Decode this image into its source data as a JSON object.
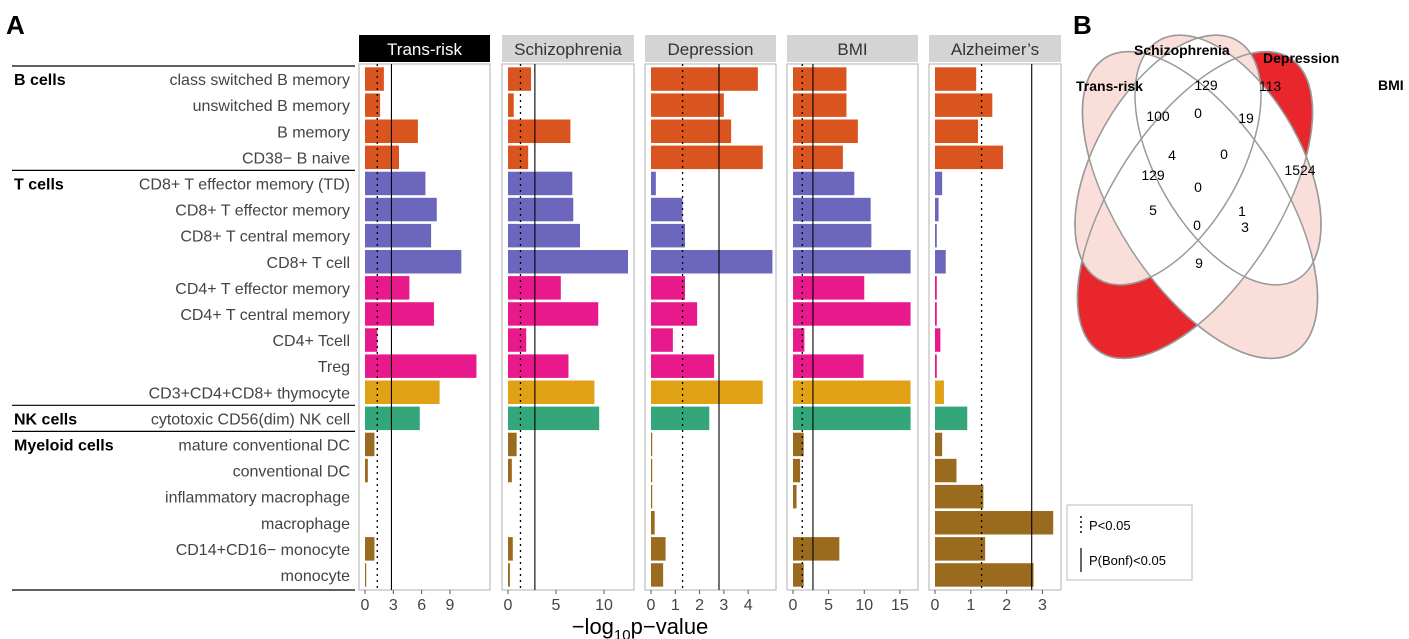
{
  "panel_labels": {
    "a": "A",
    "b": "B"
  },
  "colors": {
    "B cells": "#D9541E",
    "T cells CD8": "#6C67BD",
    "T cells CD4": "#E8198B",
    "thymocyte": "#E0A117",
    "NK cells": "#34A77A",
    "Myeloid cells": "#9A6B1E",
    "trans_risk_header": "#000000",
    "strip_header": "#D4D4D4",
    "venn_bmi": "#E8262C",
    "venn_light": "#F9DEDA"
  },
  "chart_data": [
    {
      "type": "bar",
      "orientation": "horizontal",
      "xlabel": "−log₁₀p−value",
      "xlabel_parts": {
        "pre": "−log",
        "sub": "10",
        "post": "p−value"
      },
      "groups": [
        {
          "name": "B cells",
          "rows": [
            0,
            3
          ]
        },
        {
          "name": "T cells",
          "rows": [
            4,
            12
          ]
        },
        {
          "name": "NK cells",
          "rows": [
            13,
            13
          ]
        },
        {
          "name": "Myeloid cells",
          "rows": [
            14,
            19
          ]
        }
      ],
      "categories": [
        "class switched B memory",
        "unswitched B memory",
        "B memory",
        "CD38− B naive",
        "CD8+ T effector memory (TD)",
        "CD8+ T effector memory",
        "CD8+ T central memory",
        "CD8+ T cell",
        "CD4+ T effector memory",
        "CD4+ T central memory",
        "CD4+ Tcell",
        "Treg",
        "CD3+CD4+CD8+ thymocyte",
        "cytotoxic CD56(dim) NK cell",
        "mature conventional DC",
        "conventional DC",
        "inflammatory macrophage",
        "macrophage",
        "CD14+CD16− monocyte",
        "monocyte"
      ],
      "category_color_keys": [
        "B cells",
        "B cells",
        "B cells",
        "B cells",
        "T cells CD8",
        "T cells CD8",
        "T cells CD8",
        "T cells CD8",
        "T cells CD4",
        "T cells CD4",
        "T cells CD4",
        "T cells CD4",
        "thymocyte",
        "NK cells",
        "Myeloid cells",
        "Myeloid cells",
        "Myeloid cells",
        "Myeloid cells",
        "Myeloid cells",
        "Myeloid cells"
      ],
      "series": [
        {
          "name": "Trans-risk",
          "xlim": [
            0,
            12.6
          ],
          "ticks": [
            0,
            3,
            6,
            9
          ],
          "p05": 1.3,
          "bonf": 2.8,
          "values": [
            2.0,
            1.6,
            5.6,
            3.6,
            6.4,
            7.6,
            7.0,
            10.2,
            4.7,
            7.3,
            1.3,
            11.8,
            7.9,
            5.8,
            1.0,
            0.3,
            0.0,
            0.0,
            1.0,
            0.1
          ]
        },
        {
          "name": "Schizophrenia",
          "xlim": [
            0,
            12.5
          ],
          "ticks": [
            0,
            5,
            10
          ],
          "p05": 1.3,
          "bonf": 2.8,
          "values": [
            2.4,
            0.6,
            6.5,
            2.1,
            6.7,
            6.8,
            7.5,
            12.5,
            5.5,
            9.4,
            1.9,
            6.3,
            9.0,
            9.5,
            0.9,
            0.4,
            0.0,
            0.0,
            0.5,
            0.2
          ]
        },
        {
          "name": "Depression",
          "xlim": [
            0,
            4.9
          ],
          "ticks": [
            0,
            1,
            2,
            3,
            4
          ],
          "p05": 1.3,
          "bonf": 2.8,
          "values": [
            4.4,
            3.0,
            3.3,
            4.6,
            0.2,
            1.3,
            1.4,
            5.0,
            1.4,
            1.9,
            0.9,
            2.6,
            4.6,
            2.4,
            0.05,
            0.05,
            0.05,
            0.15,
            0.6,
            0.5
          ]
        },
        {
          "name": "BMI",
          "xlim": [
            0,
            16.7
          ],
          "ticks": [
            0,
            5,
            10,
            15
          ],
          "p05": 1.3,
          "bonf": 2.8,
          "values": [
            7.5,
            7.5,
            9.1,
            7.0,
            8.6,
            10.9,
            11.0,
            16.5,
            10.0,
            16.5,
            1.6,
            9.9,
            16.5,
            16.5,
            1.5,
            1.0,
            0.5,
            0.0,
            6.5,
            1.5
          ]
        },
        {
          "name": "Alzheimer’s",
          "xlim": [
            0,
            3.35
          ],
          "ticks": [
            0,
            1,
            2,
            3
          ],
          "p05": 1.3,
          "bonf": 2.7,
          "values": [
            1.15,
            1.6,
            1.2,
            1.9,
            0.2,
            0.1,
            0.05,
            0.3,
            0.05,
            0.05,
            0.15,
            0.05,
            0.25,
            0.9,
            0.2,
            0.6,
            1.35,
            3.3,
            1.4,
            2.75
          ]
        }
      ],
      "legend": {
        "position": "bottom-right",
        "items": [
          {
            "label": "P<0.05",
            "style": "dotted"
          },
          {
            "label": "P(Bonf)<0.05",
            "style": "solid"
          }
        ]
      }
    },
    {
      "type": "venn",
      "sets": [
        "Trans-risk",
        "Schizophrenia",
        "Depression",
        "BMI"
      ],
      "regions": [
        {
          "sets": [
            "Trans-risk"
          ],
          "value": "129"
        },
        {
          "sets": [
            "Schizophrenia"
          ],
          "value": "129"
        },
        {
          "sets": [
            "Depression"
          ],
          "value": "113"
        },
        {
          "sets": [
            "BMI"
          ],
          "value": "1524"
        },
        {
          "sets": [
            "Trans-risk",
            "Schizophrenia"
          ],
          "value": "100"
        },
        {
          "sets": [
            "Schizophrenia",
            "Depression"
          ],
          "value": "0"
        },
        {
          "sets": [
            "Depression",
            "BMI"
          ],
          "value": "19"
        },
        {
          "sets": [
            "Trans-risk",
            "Schizophrenia",
            "Depression"
          ],
          "value": "4"
        },
        {
          "sets": [
            "Schizophrenia",
            "Depression",
            "BMI"
          ],
          "value": "0"
        },
        {
          "sets": [
            "Trans-risk",
            "Depression"
          ],
          "value": "5"
        },
        {
          "sets": [
            "Trans-risk",
            "Schizophrenia",
            "Depression",
            "BMI"
          ],
          "value": "0"
        },
        {
          "sets": [
            "Schizophrenia",
            "BMI"
          ],
          "value": "1"
        },
        {
          "sets": [
            "Trans-risk",
            "Depression",
            "BMI"
          ],
          "value": "0"
        },
        {
          "sets": [
            "Trans-risk",
            "Schizophrenia",
            "BMI"
          ],
          "value": "3"
        },
        {
          "sets": [
            "Trans-risk",
            "BMI"
          ],
          "value": "9"
        }
      ]
    }
  ]
}
